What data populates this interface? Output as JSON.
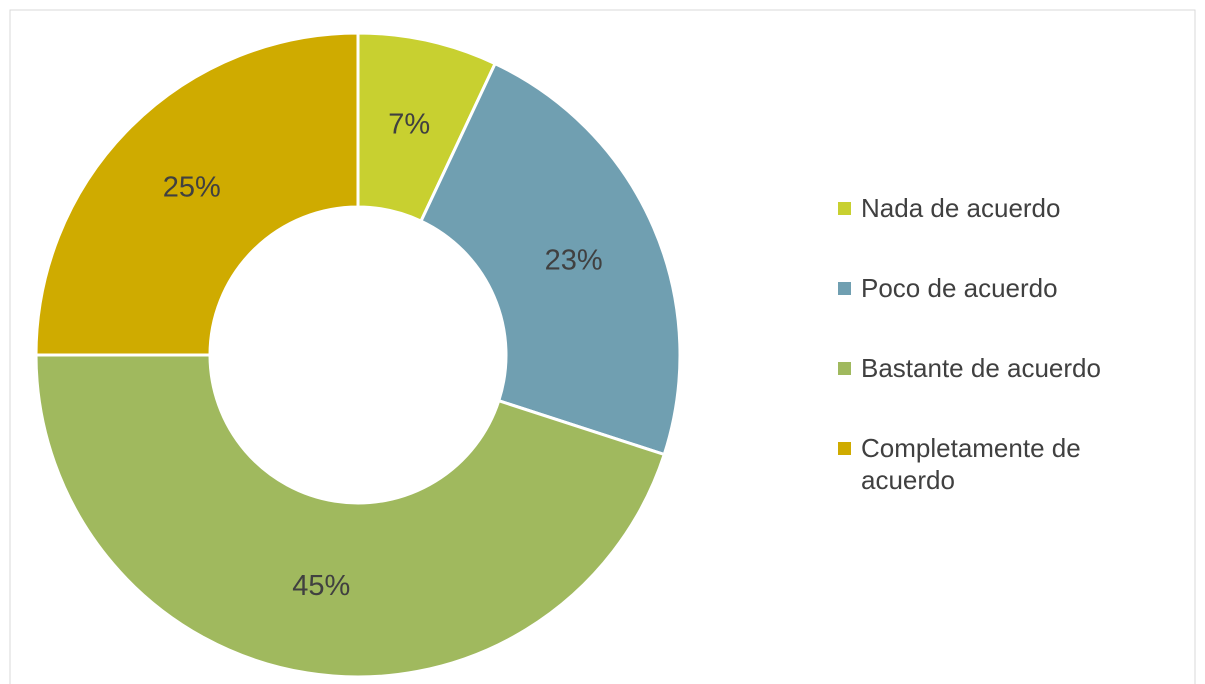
{
  "chart_data": {
    "type": "pie",
    "categories": [
      "Nada de acuerdo",
      "Poco de acuerdo",
      "Bastante de acuerdo",
      "Completamente de acuerdo"
    ],
    "values": [
      7,
      23,
      45,
      25
    ],
    "value_labels": [
      "7%",
      "23%",
      "45%",
      "25%"
    ],
    "colors": [
      "#c8d030",
      "#709fb1",
      "#a0b95e",
      "#cfab00"
    ],
    "legend": "right"
  }
}
